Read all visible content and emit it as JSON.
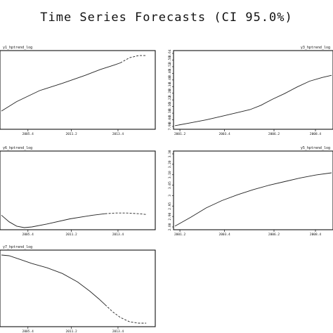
{
  "title": "Time Series Forecasts (CI 95.0%)",
  "chart_data": [
    {
      "type": "line",
      "series_label": "y1_hptrend_log",
      "x_ticks": [
        "2005.4",
        "2011.2",
        "2013.4"
      ],
      "y_ticks": [],
      "history": [
        [
          0,
          0.22
        ],
        [
          0.1,
          0.35
        ],
        [
          0.25,
          0.5
        ],
        [
          0.4,
          0.6
        ],
        [
          0.55,
          0.71
        ],
        [
          0.65,
          0.79
        ],
        [
          0.74,
          0.85
        ],
        [
          0.78,
          0.88
        ]
      ],
      "forecast": [
        [
          0.78,
          0.88
        ],
        [
          0.84,
          0.95
        ],
        [
          0.9,
          0.98
        ],
        [
          0.95,
          0.98
        ]
      ],
      "ylim": [
        0,
        1
      ]
    },
    {
      "type": "line",
      "series_label": "y3_hptrend_log",
      "x_ticks": [
        "2001.2",
        "2003.4",
        "2006.2",
        "2008.4"
      ],
      "y_ticks": [
        "7.98",
        "8.04",
        "8.10",
        "8.16",
        "8.22",
        "8.28",
        "8.34",
        "8.40",
        "8.46",
        "8.52",
        "8.58",
        "8.64"
      ],
      "history": [
        [
          0,
          0.02
        ],
        [
          0.1,
          0.06
        ],
        [
          0.2,
          0.1
        ],
        [
          0.3,
          0.15
        ],
        [
          0.4,
          0.2
        ],
        [
          0.48,
          0.24
        ],
        [
          0.55,
          0.3
        ],
        [
          0.62,
          0.38
        ],
        [
          0.7,
          0.46
        ],
        [
          0.78,
          0.55
        ],
        [
          0.86,
          0.63
        ],
        [
          0.94,
          0.68
        ],
        [
          1,
          0.71
        ]
      ],
      "forecast": [],
      "ylim": [
        0,
        1
      ]
    },
    {
      "type": "line",
      "series_label": "y6_hptrend_log",
      "x_ticks": [
        "2005.4",
        "2011.2",
        "2013.4"
      ],
      "y_ticks": [],
      "history": [
        [
          0,
          0.17
        ],
        [
          0.05,
          0.08
        ],
        [
          0.1,
          0.02
        ],
        [
          0.15,
          0.0
        ],
        [
          0.2,
          0.01
        ],
        [
          0.3,
          0.05
        ],
        [
          0.45,
          0.12
        ],
        [
          0.6,
          0.17
        ],
        [
          0.68,
          0.19
        ]
      ],
      "forecast": [
        [
          0.68,
          0.19
        ],
        [
          0.75,
          0.2
        ],
        [
          0.82,
          0.2
        ],
        [
          0.9,
          0.19
        ],
        [
          0.95,
          0.18
        ]
      ],
      "ylim": [
        0,
        1
      ]
    },
    {
      "type": "line",
      "series_label": "y5_hptrend_log",
      "x_ticks": [
        "2001.2",
        "2003.4",
        "2006.2",
        "2008.4"
      ],
      "y_ticks": [
        "2.80",
        "2.90",
        "2.95",
        "3",
        "3.05",
        "3.10",
        "3.20",
        "3.30"
      ],
      "history": [
        [
          0,
          0.02
        ],
        [
          0.1,
          0.14
        ],
        [
          0.2,
          0.27
        ],
        [
          0.3,
          0.37
        ],
        [
          0.4,
          0.45
        ],
        [
          0.5,
          0.52
        ],
        [
          0.6,
          0.58
        ],
        [
          0.7,
          0.63
        ],
        [
          0.8,
          0.68
        ],
        [
          0.9,
          0.72
        ],
        [
          1,
          0.75
        ]
      ],
      "forecast": [],
      "ylim": [
        0,
        1
      ]
    },
    {
      "type": "line",
      "series_label": "y7_hptrend_log",
      "x_ticks": [
        "2005.4",
        "2011.2",
        "2013.4"
      ],
      "y_ticks": [],
      "history": [
        [
          0,
          0.98
        ],
        [
          0.05,
          0.97
        ],
        [
          0.12,
          0.92
        ],
        [
          0.2,
          0.86
        ],
        [
          0.3,
          0.8
        ],
        [
          0.4,
          0.72
        ],
        [
          0.5,
          0.6
        ],
        [
          0.58,
          0.47
        ],
        [
          0.64,
          0.36
        ],
        [
          0.68,
          0.28
        ]
      ],
      "forecast": [
        [
          0.68,
          0.28
        ],
        [
          0.73,
          0.18
        ],
        [
          0.78,
          0.1
        ],
        [
          0.84,
          0.04
        ],
        [
          0.9,
          0.02
        ],
        [
          0.95,
          0.02
        ]
      ],
      "ylim": [
        0,
        1
      ]
    }
  ]
}
